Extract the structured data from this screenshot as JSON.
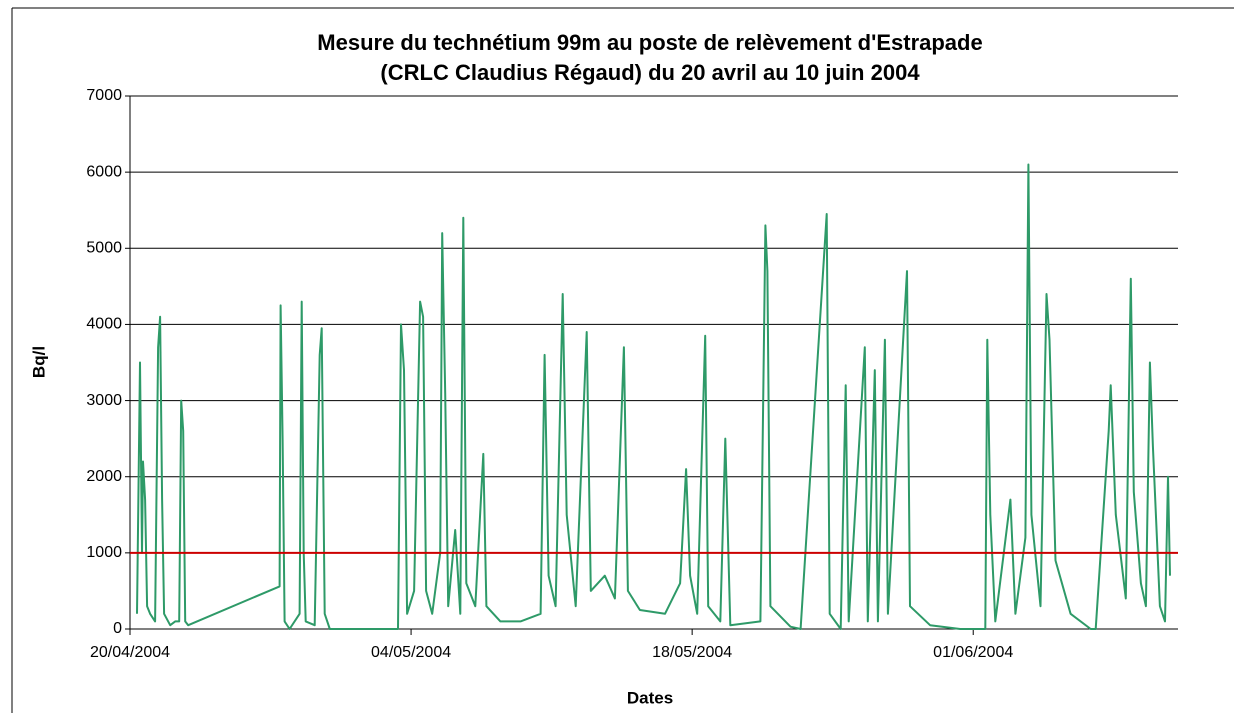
{
  "chart_data": {
    "type": "line",
    "title": [
      "Mesure du technétium 99m au poste de relèvement d'Estrapade",
      "(CRLC Claudius Régaud) du 20 avril au 10 juin 2004"
    ],
    "x_label": "Dates",
    "y_label": "Bq/l",
    "xlim": [
      0,
      52.2
    ],
    "xticks": [
      {
        "value": 0,
        "label": "20/04/2004"
      },
      {
        "value": 14,
        "label": "04/05/2004"
      },
      {
        "value": 28,
        "label": "18/05/2004"
      },
      {
        "value": 42,
        "label": "01/06/2004"
      }
    ],
    "ylim": [
      0,
      7000
    ],
    "yticks": [
      0,
      1000,
      2000,
      3000,
      4000,
      5000,
      6000,
      7000
    ],
    "grid": true,
    "threshold": 1000,
    "threshold_color": "#cc0000",
    "series": [
      {
        "color": "#2e9a68",
        "x": [
          0.35,
          0.5,
          0.6,
          0.65,
          0.75,
          0.85,
          1.0,
          1.25,
          1.4,
          1.5,
          1.6,
          1.7,
          2.0,
          2.25,
          2.45,
          2.55,
          2.65,
          2.75,
          2.9,
          7.45,
          7.5,
          7.6,
          7.7,
          7.95,
          8.45,
          8.55,
          8.65,
          8.75,
          9.2,
          9.45,
          9.55,
          9.7,
          9.95,
          13.35,
          13.5,
          13.65,
          13.8,
          14.15,
          14.45,
          14.6,
          14.75,
          15.05,
          15.45,
          15.55,
          15.7,
          15.85,
          16.2,
          16.45,
          16.6,
          16.75,
          17.2,
          17.6,
          17.75,
          18.45,
          19.45,
          20.45,
          20.65,
          20.85,
          21.2,
          21.55,
          21.75,
          22.2,
          22.75,
          22.95,
          23.65,
          24.15,
          24.6,
          24.8,
          25.4,
          26.65,
          27.4,
          27.7,
          27.9,
          28.25,
          28.65,
          28.8,
          29.4,
          29.65,
          29.9,
          31.4,
          31.65,
          31.75,
          31.9,
          32.9,
          33.4,
          34.7,
          34.85,
          35.4,
          35.65,
          35.8,
          36.6,
          36.75,
          37.1,
          37.25,
          37.6,
          37.75,
          38.7,
          38.85,
          39.85,
          41.35,
          42.6,
          42.7,
          42.85,
          43.1,
          43.85,
          44.1,
          44.6,
          44.75,
          44.9,
          45.35,
          45.65,
          45.8,
          46.1,
          46.85,
          47.85,
          48.1,
          48.75,
          48.85,
          49.1,
          49.6,
          49.85,
          50.0,
          50.35,
          50.6,
          50.8,
          50.95,
          51.3,
          51.55,
          51.7,
          51.8
        ],
        "values": [
          200,
          3500,
          1000,
          2200,
          1700,
          300,
          200,
          100,
          3700,
          4100,
          1700,
          200,
          50,
          100,
          100,
          3000,
          2600,
          100,
          50,
          560,
          4250,
          2500,
          100,
          0,
          200,
          4300,
          1000,
          100,
          50,
          3600,
          3950,
          200,
          0,
          0,
          4000,
          3400,
          200,
          500,
          4300,
          4100,
          500,
          200,
          1000,
          5200,
          3100,
          300,
          1300,
          200,
          5400,
          600,
          300,
          2300,
          300,
          100,
          100,
          200,
          3600,
          700,
          300,
          4400,
          1500,
          300,
          3900,
          500,
          700,
          400,
          3700,
          500,
          250,
          200,
          600,
          2100,
          700,
          200,
          3850,
          300,
          100,
          2500,
          50,
          100,
          5300,
          4700,
          300,
          30,
          0,
          5450,
          200,
          0,
          3200,
          100,
          3700,
          100,
          3400,
          100,
          3800,
          200,
          4700,
          300,
          50,
          0,
          0,
          3800,
          1500,
          100,
          1700,
          200,
          1200,
          6100,
          1500,
          300,
          4400,
          3800,
          900,
          200,
          0,
          0,
          2600,
          3200,
          1500,
          400,
          4600,
          1800,
          600,
          300,
          3500,
          2400,
          300,
          100,
          2000,
          700
        ]
      }
    ]
  }
}
